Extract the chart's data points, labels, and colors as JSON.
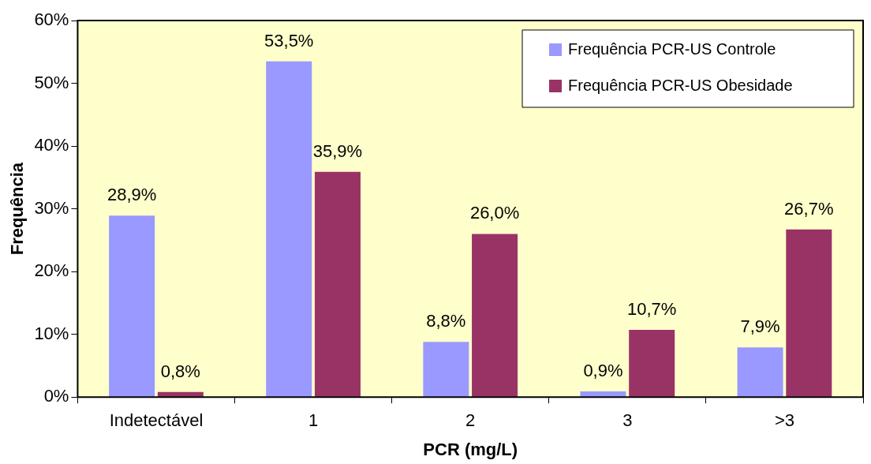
{
  "chart_data": {
    "type": "bar",
    "xlabel": "PCR (mg/L)",
    "ylabel": "Frequência",
    "categories": [
      "Indetectável",
      "1",
      "2",
      "3",
      ">3"
    ],
    "series": [
      {
        "name": "Frequência PCR-US Controle",
        "color": "#9999ff",
        "values": [
          28.9,
          53.5,
          8.8,
          0.9,
          7.9
        ],
        "value_labels": [
          "28,9%",
          "53,5%",
          "8,8%",
          "0,9%",
          "7,9%"
        ]
      },
      {
        "name": "Frequência PCR-US Obesidade",
        "color": "#993366",
        "values": [
          0.8,
          35.9,
          26.0,
          10.7,
          26.7
        ],
        "value_labels": [
          "0,8%",
          "35,9%",
          "26,0%",
          "10,7%",
          "26,7%"
        ]
      }
    ],
    "ylim": [
      0,
      60
    ],
    "yticks": [
      {
        "value": 0,
        "label": "0%"
      },
      {
        "value": 10,
        "label": "10%"
      },
      {
        "value": 20,
        "label": "20%"
      },
      {
        "value": 30,
        "label": "30%"
      },
      {
        "value": 40,
        "label": "40%"
      },
      {
        "value": 50,
        "label": "50%"
      },
      {
        "value": 60,
        "label": "60%"
      }
    ],
    "grid": false,
    "legend": "top right"
  }
}
